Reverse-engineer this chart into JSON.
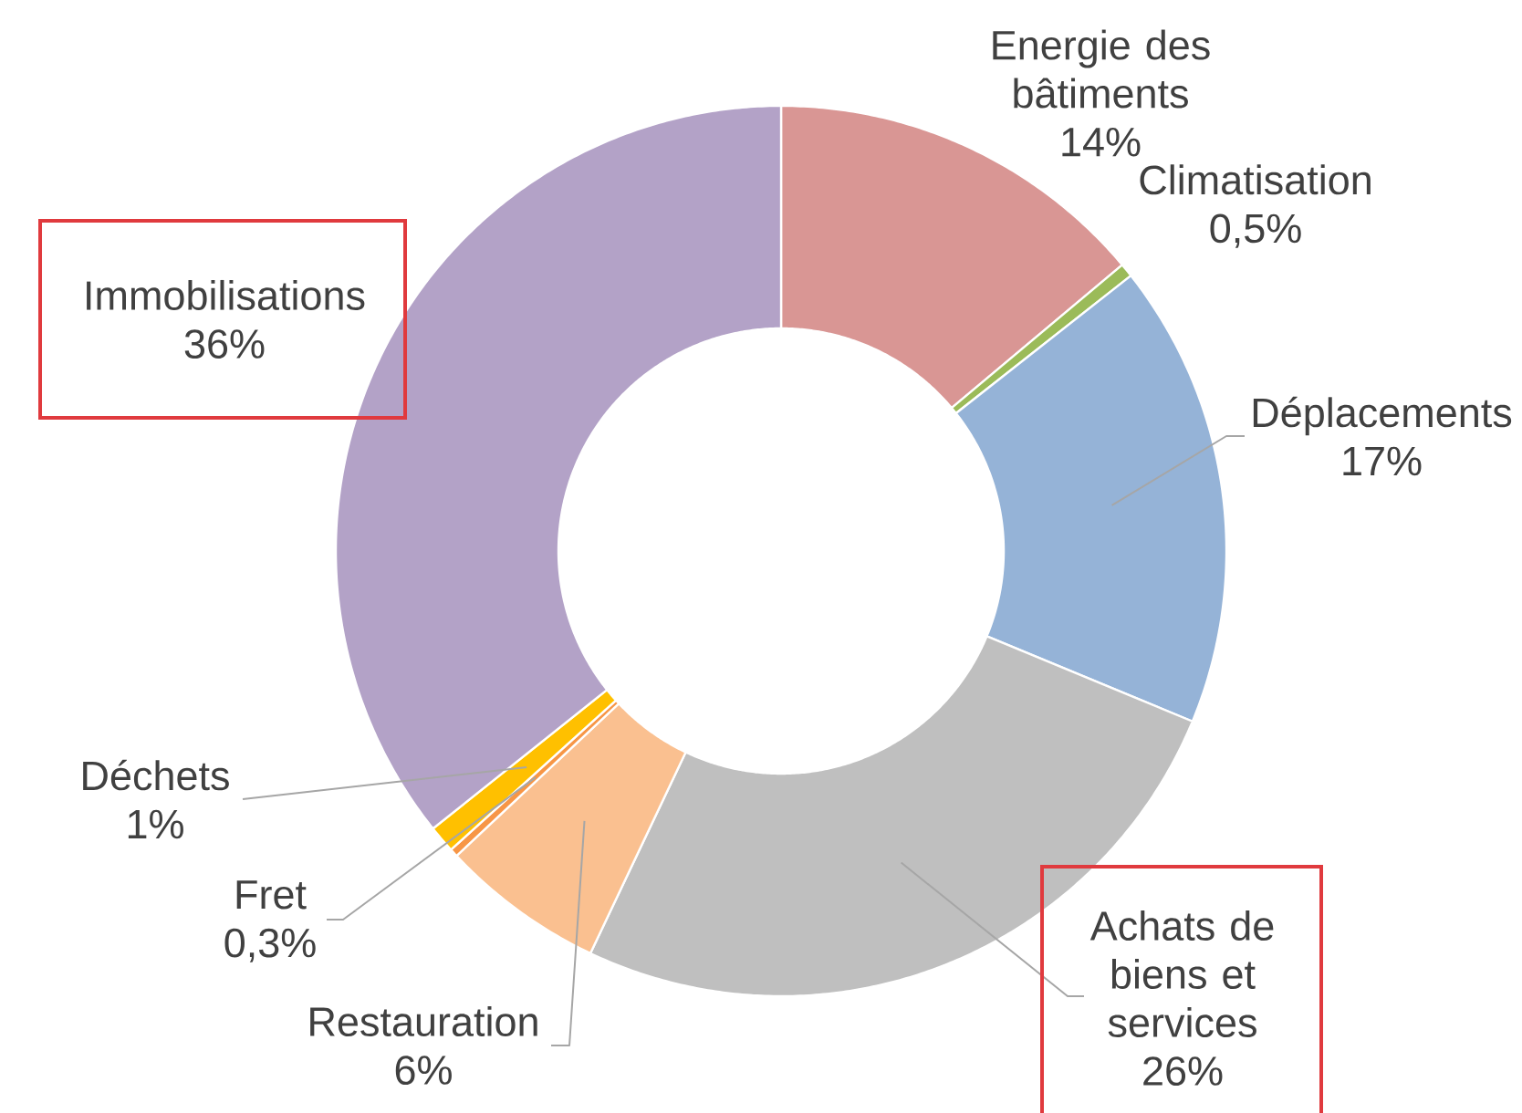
{
  "chart_data": {
    "type": "donut",
    "categories": [
      "Energie des bâtiments",
      "Climatisation",
      "Déplacements",
      "Achats de biens et services",
      "Restauration",
      "Fret",
      "Déchets",
      "Immobilisations"
    ],
    "values": [
      14,
      0.5,
      17,
      26,
      6,
      0.3,
      1,
      36
    ],
    "value_labels": [
      "14%",
      "0,5%",
      "17%",
      "26%",
      "6%",
      "0,3%",
      "1%",
      "36%"
    ],
    "colors": [
      "#d99694",
      "#9bbb59",
      "#95b3d7",
      "#bfbfbf",
      "#fac090",
      "#f79646",
      "#ffc000",
      "#b3a2c7"
    ]
  }
}
